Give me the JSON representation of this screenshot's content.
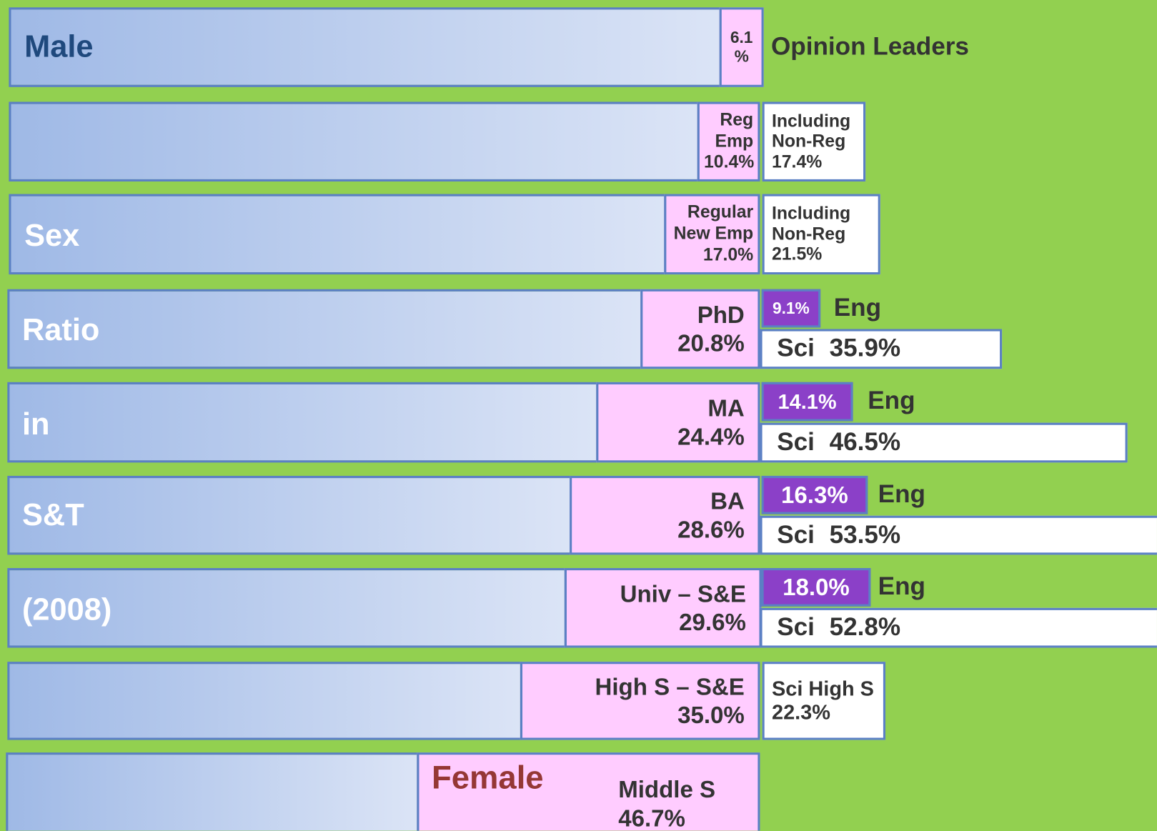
{
  "side_labels": {
    "male": "Male",
    "sex": "Sex",
    "ratio": "Ratio",
    "in": "in",
    "st": "S&T",
    "year": "(2008)",
    "female": "Female"
  },
  "rows": [
    {
      "main": [
        "6.1",
        "%"
      ],
      "note": "Opinion Leaders"
    },
    {
      "main": [
        "Reg",
        "Emp",
        "10.4%"
      ],
      "extra": [
        "Including",
        "Non-Reg",
        "17.4%"
      ]
    },
    {
      "main": [
        "Regular",
        "New Emp",
        "17.0%"
      ],
      "extra": [
        "Including",
        "Non-Reg",
        "21.5%"
      ]
    },
    {
      "main": [
        "PhD",
        "20.8%"
      ],
      "eng_value": "9.1%",
      "eng_label": "Eng",
      "sci_label": "Sci",
      "sci_value": "35.9%"
    },
    {
      "main": [
        "MA",
        "24.4%"
      ],
      "eng_value": "14.1%",
      "eng_label": "Eng",
      "sci_label": "Sci",
      "sci_value": "46.5%"
    },
    {
      "main": [
        "BA",
        "28.6%"
      ],
      "eng_value": "16.3%",
      "eng_label": "Eng",
      "sci_label": "Sci",
      "sci_value": "53.5%"
    },
    {
      "main": [
        "Univ – S&E",
        "29.6%"
      ],
      "eng_value": "18.0%",
      "eng_label": "Eng",
      "sci_label": "Sci",
      "sci_value": "52.8%"
    },
    {
      "main": [
        "High S – S&E",
        "35.0%"
      ],
      "extra": [
        "Sci High S",
        "22.3%"
      ]
    },
    {
      "main": [
        "Middle S",
        "46.7%"
      ]
    }
  ]
}
